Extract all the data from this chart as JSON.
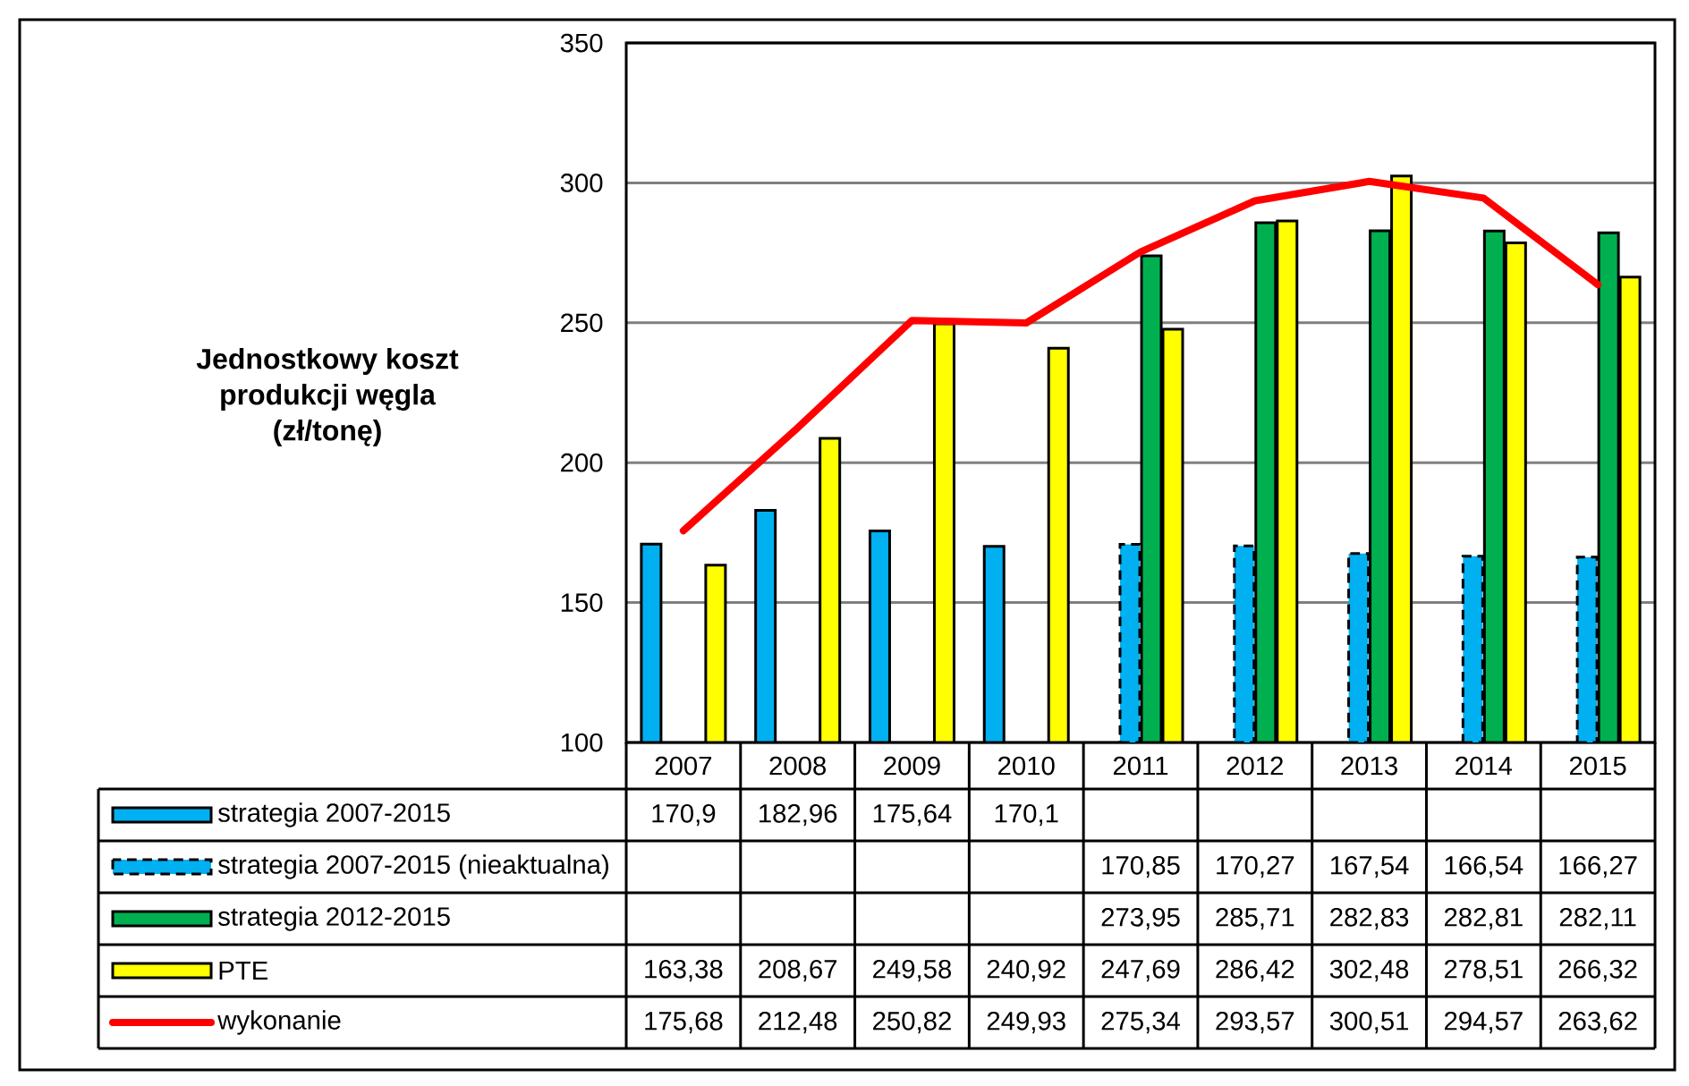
{
  "chart_data": {
    "type": "bar",
    "ylabel": "Jednostkowy koszt produkcji węgla (zł/tonę)",
    "categories": [
      "2007",
      "2008",
      "2009",
      "2010",
      "2011",
      "2012",
      "2013",
      "2014",
      "2015"
    ],
    "ylim": [
      100,
      350
    ],
    "yticks": [
      100,
      150,
      200,
      250,
      300,
      350
    ],
    "grid": "y",
    "legend": "bottom",
    "series": [
      {
        "name": "strategia 2007-2015",
        "color": "#00b0f0",
        "values": [
          170.9,
          182.96,
          175.64,
          170.1,
          null,
          null,
          null,
          null,
          null
        ],
        "value_labels": [
          "170,9",
          "182,96",
          "175,64",
          "170,1",
          null,
          null,
          null,
          null,
          null
        ]
      },
      {
        "name": "strategia 2007-2015 (nieaktualna)",
        "color": "#00b0f0",
        "line_style": "dashed",
        "values": [
          null,
          null,
          null,
          null,
          170.85,
          170.27,
          167.54,
          166.54,
          166.27
        ],
        "value_labels": [
          null,
          null,
          null,
          null,
          "170,85",
          "170,27",
          "167,54",
          "166,54",
          "166,27"
        ]
      },
      {
        "name": "strategia 2012-2015",
        "color": "#00b050",
        "values": [
          null,
          null,
          null,
          null,
          273.95,
          285.71,
          282.83,
          282.81,
          282.11
        ],
        "value_labels": [
          null,
          null,
          null,
          null,
          "273,95",
          "285,71",
          "282,83",
          "282,81",
          "282,11"
        ]
      },
      {
        "name": "PTE",
        "color": "#ffff00",
        "values": [
          163.38,
          208.67,
          249.58,
          240.92,
          247.69,
          286.42,
          302.48,
          278.51,
          266.32
        ],
        "value_labels": [
          "163,38",
          "208,67",
          "249,58",
          "240,92",
          "247,69",
          "286,42",
          "302,48",
          "278,51",
          "266,32"
        ]
      },
      {
        "name": "wykonanie",
        "type": "line",
        "color": "#ff0000",
        "values": [
          175.68,
          212.48,
          250.82,
          249.93,
          275.34,
          293.57,
          300.51,
          294.57,
          263.62
        ],
        "value_labels": [
          "175,68",
          "212,48",
          "250,82",
          "249,93",
          "275,34",
          "293,57",
          "300,51",
          "294,57",
          "263,62"
        ]
      }
    ]
  }
}
